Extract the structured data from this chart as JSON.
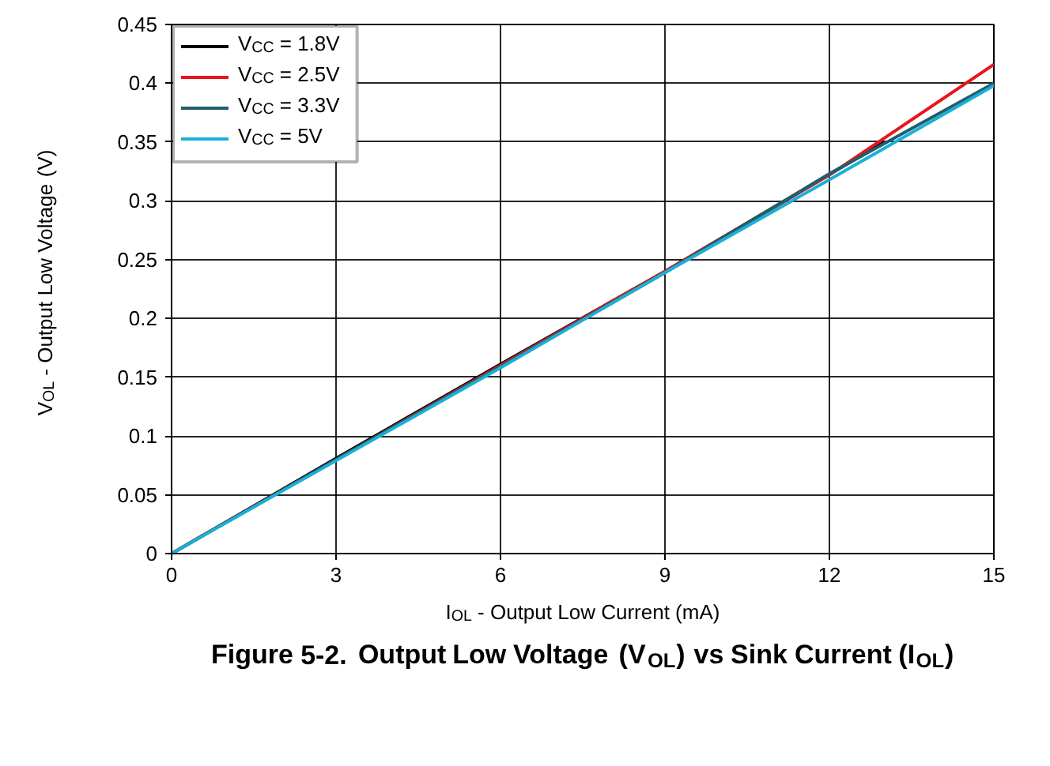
{
  "chart_data": {
    "type": "line",
    "title": "Figure 5-2. Output Low Voltage (V$_{OL}$) vs Sink Current (I$_{OL}$)",
    "xlabel": "I$_{OL}$ - Output Low Current (mA)",
    "ylabel": "V$_{OL}$ - Output Low Voltage (V)",
    "xlim": [
      0,
      15
    ],
    "ylim": [
      0,
      0.45
    ],
    "xticks": [
      0,
      3,
      6,
      9,
      12,
      15
    ],
    "yticks": [
      0,
      0.05,
      0.1,
      0.15,
      0.2,
      0.25,
      0.3,
      0.35,
      0.4,
      0.45
    ],
    "grid": true,
    "legend": "top left",
    "line_style": "solid",
    "marker": "none",
    "series": [
      {
        "name": "V$_{CC}$ = 1.8V",
        "color": "#000000",
        "x": [
          0,
          3,
          6,
          9,
          13
        ],
        "values": [
          0,
          0.081,
          0.161,
          0.24,
          0.35
        ]
      },
      {
        "name": "V$_{CC}$ = 2.5V",
        "color": "#e8141c",
        "x": [
          0,
          3,
          6,
          9,
          12,
          15
        ],
        "values": [
          0,
          0.08,
          0.16,
          0.24,
          0.322,
          0.416
        ]
      },
      {
        "name": "V$_{CC}$ = 3.3V",
        "color": "#1f5f6b",
        "x": [
          0,
          3,
          6,
          9,
          12,
          15
        ],
        "values": [
          0,
          0.08,
          0.159,
          0.239,
          0.323,
          0.4
        ]
      },
      {
        "name": "V$_{CC}$ = 5V",
        "color": "#1ab0d8",
        "x": [
          0,
          3,
          6,
          9,
          12,
          15
        ],
        "values": [
          0,
          0.079,
          0.158,
          0.239,
          0.318,
          0.398
        ]
      }
    ]
  }
}
